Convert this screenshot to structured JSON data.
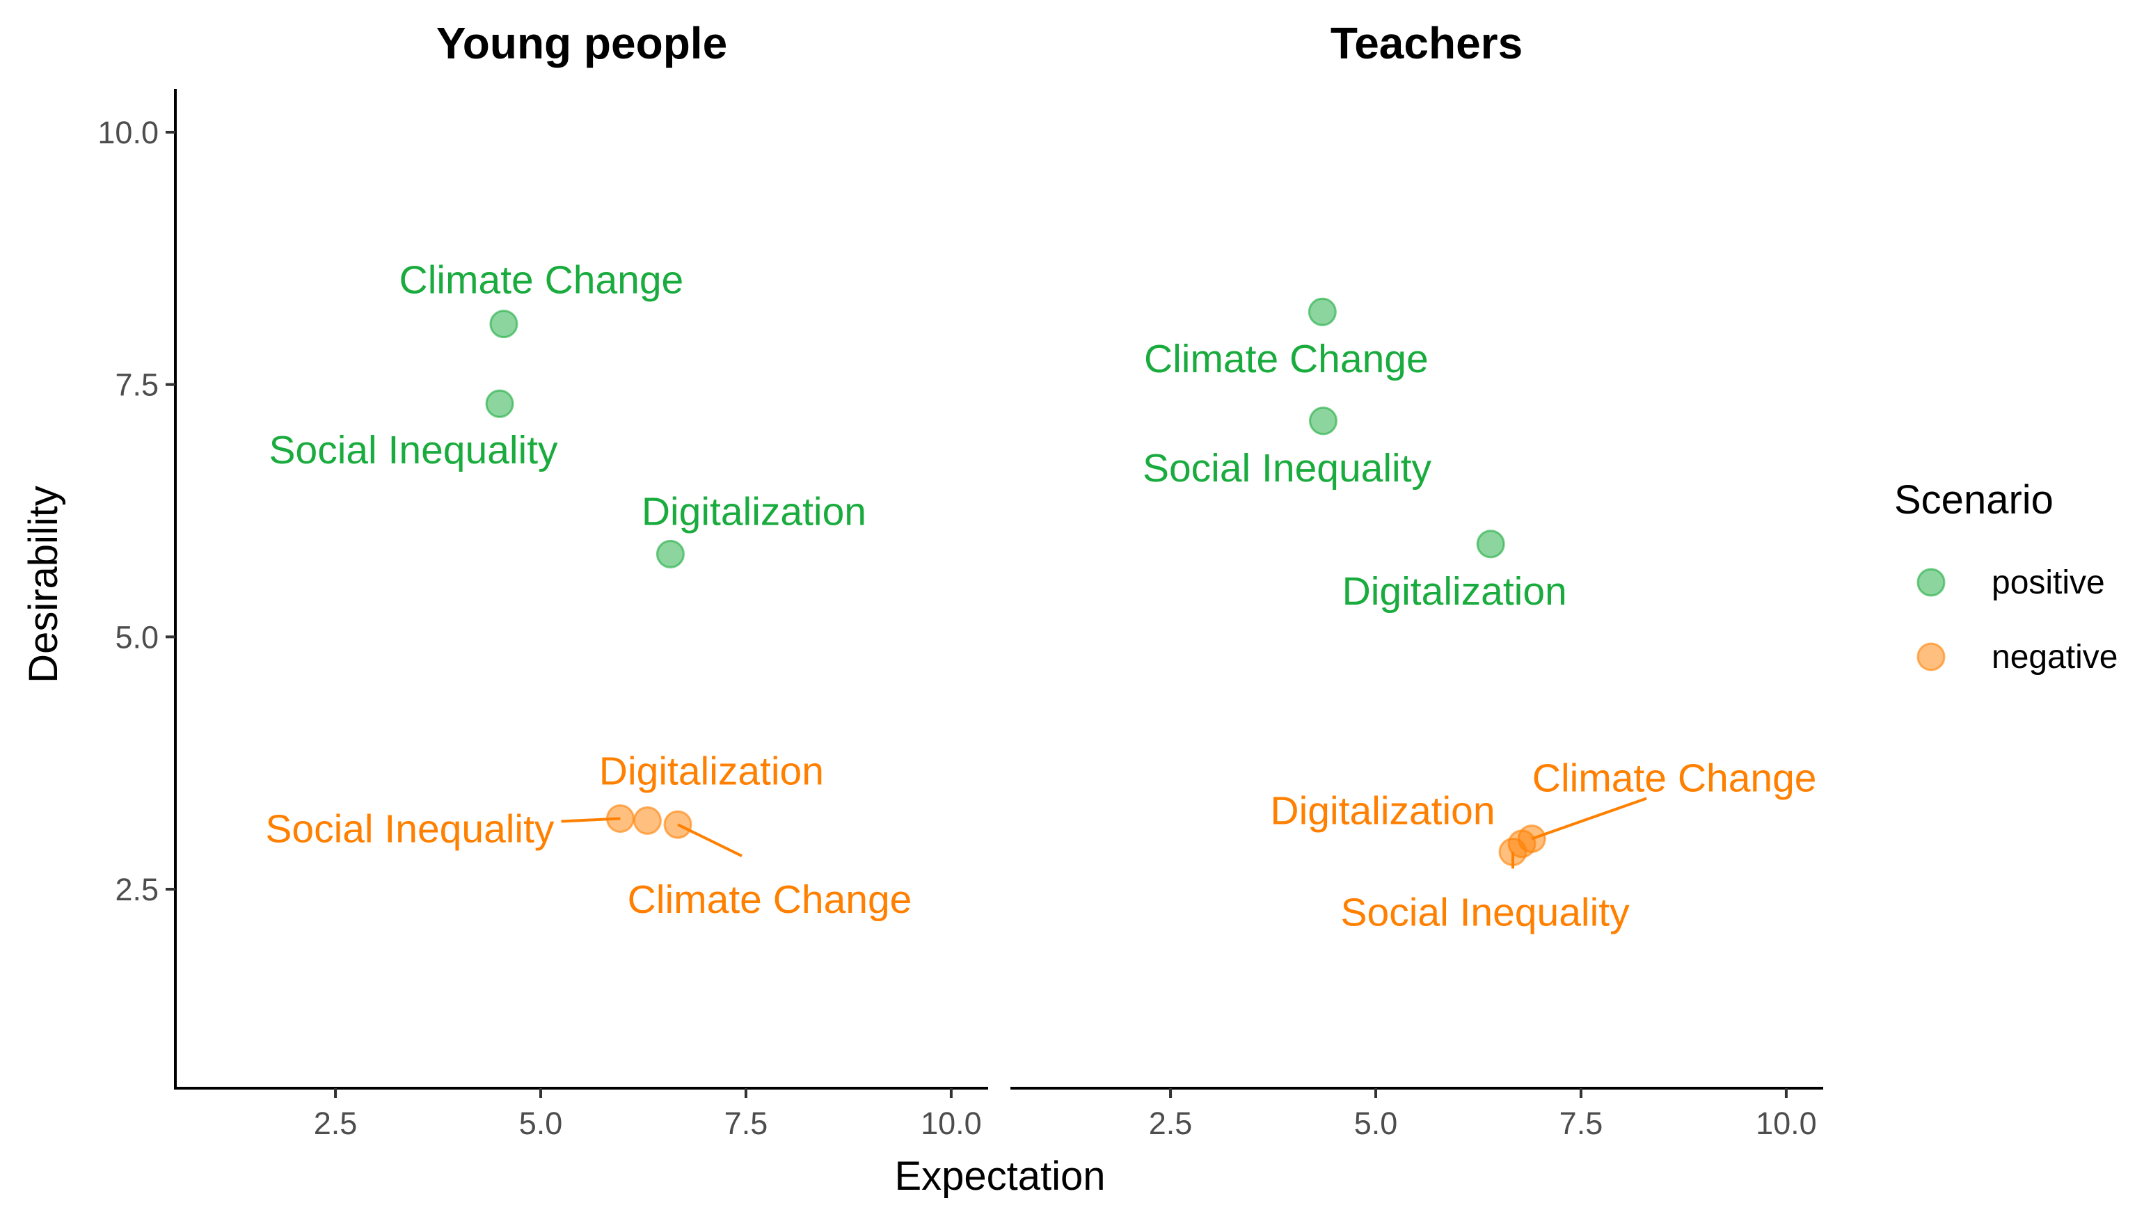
{
  "chart_data": {
    "type": "scatter",
    "xlabel": "Expectation",
    "ylabel": "Desirability",
    "xlim": [
      0.55,
      10.45
    ],
    "ylim": [
      0.65,
      10.45
    ],
    "xticks": [
      "2.5",
      "5.0",
      "7.5",
      "10.0"
    ],
    "yticks": [
      "2.5",
      "5.0",
      "7.5",
      "10.0"
    ],
    "grid": false,
    "legend": {
      "title": "Scenario",
      "placement": "right",
      "entries": [
        {
          "key": "positive",
          "label": "positive",
          "color": "#1aab3e"
        },
        {
          "key": "negative",
          "label": "negative",
          "color": "#ff8000"
        }
      ]
    },
    "panels": [
      {
        "title": "Young people",
        "points": [
          {
            "scenario": "positive",
            "label": "Climate Change",
            "x": 4.55,
            "y": 8.1
          },
          {
            "scenario": "positive",
            "label": "Social Inequality",
            "x": 4.5,
            "y": 7.31
          },
          {
            "scenario": "positive",
            "label": "Digitalization",
            "x": 6.58,
            "y": 5.82
          },
          {
            "scenario": "negative",
            "label": "Social Inequality",
            "x": 5.97,
            "y": 3.2
          },
          {
            "scenario": "negative",
            "label": "Digitalization",
            "x": 6.3,
            "y": 3.18
          },
          {
            "scenario": "negative",
            "label": "Climate Change",
            "x": 6.67,
            "y": 3.14
          }
        ]
      },
      {
        "title": "Teachers",
        "points": [
          {
            "scenario": "positive",
            "label": "Climate Change",
            "x": 4.35,
            "y": 8.22
          },
          {
            "scenario": "positive",
            "label": "Social Inequality",
            "x": 4.36,
            "y": 7.14
          },
          {
            "scenario": "positive",
            "label": "Digitalization",
            "x": 6.4,
            "y": 5.92
          },
          {
            "scenario": "negative",
            "label": "Social Inequality",
            "x": 6.67,
            "y": 2.87
          },
          {
            "scenario": "negative",
            "label": "Digitalization",
            "x": 6.78,
            "y": 2.95
          },
          {
            "scenario": "negative",
            "label": "Climate Change",
            "x": 6.9,
            "y": 3.0
          }
        ]
      }
    ]
  }
}
